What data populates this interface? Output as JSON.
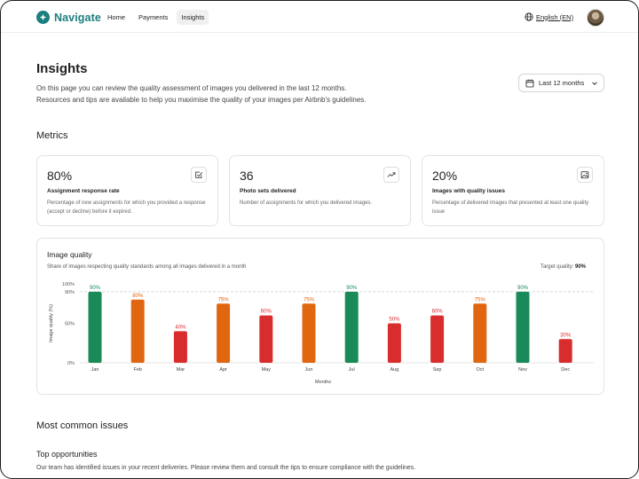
{
  "nav": {
    "brand": "Navigate",
    "links": [
      "Home",
      "Payments",
      "Insights"
    ],
    "active_index": 2,
    "language": "English (EN)"
  },
  "header": {
    "title": "Insights",
    "description_line1": "On this page you can review the quality assessment of images you delivered in the last 12 months.",
    "description_line2": "Resources and tips are available to help you maximise the quality of your images per Airbnb's guidelines.",
    "period": "Last 12 months"
  },
  "metrics": {
    "title": "Metrics",
    "cards": [
      {
        "value": "80%",
        "label": "Assignment response rate",
        "description": "Percentage of new assignments for which you provided a response (accept or decline) before it expired.",
        "icon": "check-square-icon"
      },
      {
        "value": "36",
        "label": "Photo sets delivered",
        "description": "Number of assignments for which you delivered images.",
        "icon": "trending-up-icon"
      },
      {
        "value": "20%",
        "label": "Images with quality issues",
        "description": "Percentage of delivered images that presented at least one quality issue",
        "icon": "image-alert-icon"
      }
    ]
  },
  "image_quality": {
    "title": "Image quality",
    "subtitle": "Share of images respecting quality standards among all images delivered in a month",
    "target_label": "Target quality:",
    "target_value": "90%"
  },
  "chart_data": {
    "type": "bar",
    "title": "Image quality",
    "xlabel": "Months",
    "ylabel": "Image quality (%)",
    "categories": [
      "Jan",
      "Feb",
      "Mar",
      "Apr",
      "May",
      "Jun",
      "Jul",
      "Aug",
      "Sep",
      "Oct",
      "Nov",
      "Dec"
    ],
    "values": [
      90,
      80,
      40,
      75,
      60,
      75,
      90,
      50,
      60,
      75,
      90,
      30
    ],
    "value_labels": [
      "90%",
      "80%",
      "40%",
      "75%",
      "60%",
      "75%",
      "90%",
      "50%",
      "60%",
      "75%",
      "90%",
      "30%"
    ],
    "ylim": [
      0,
      100
    ],
    "yticks": [
      0,
      50,
      90,
      100
    ],
    "ytick_labels": [
      "0%",
      "50%",
      "90%",
      "100%"
    ],
    "target": 90,
    "colors": {
      "target_met": "#1a8a5a",
      "medium": "#e0660f",
      "low": "#d92c2c"
    }
  },
  "issues": {
    "title": "Most common issues",
    "subtitle": "Top opportunities",
    "description": "Our team has identified issues in your recent deliveries. Please review them and consult the tips to ensure compliance with the guidelines."
  }
}
